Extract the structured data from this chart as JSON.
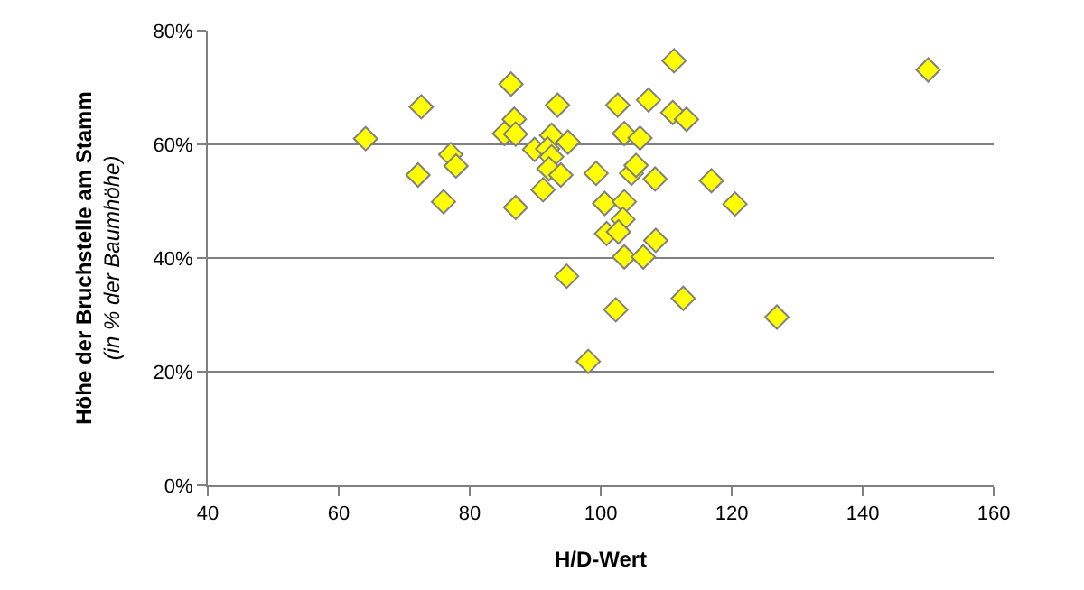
{
  "chart_data": {
    "type": "scatter",
    "xlabel": "H/D-Wert",
    "ylabel": "Höhe der Bruchstelle am Stamm",
    "subtitle": "(in % der Baumhöhe)",
    "x": [
      64.1,
      72.6,
      86.3,
      111.2,
      93.4,
      102.6,
      107.3,
      111.0,
      113.1,
      86.8,
      85.3,
      87.0,
      92.5,
      95.0,
      103.6,
      106.0,
      89.9,
      91.9,
      92.5,
      92.1,
      93.9,
      99.3,
      104.7,
      105.4,
      108.3,
      116.9,
      77.1,
      77.9,
      72.1,
      91.2,
      76.0,
      87.0,
      100.6,
      103.6,
      103.4,
      100.9,
      102.7,
      108.4,
      120.5,
      103.6,
      106.5,
      94.8,
      112.6,
      102.3,
      98.1,
      150.0,
      126.9
    ],
    "values": [
      61.0,
      66.6,
      70.6,
      74.7,
      66.9,
      66.9,
      67.8,
      65.6,
      64.4,
      64.4,
      61.9,
      61.8,
      61.6,
      60.4,
      61.9,
      61.1,
      59.1,
      59.2,
      57.8,
      55.7,
      54.6,
      54.9,
      54.9,
      56.3,
      53.9,
      53.6,
      58.2,
      56.2,
      54.6,
      52.0,
      49.9,
      48.9,
      49.6,
      49.9,
      46.8,
      44.3,
      44.6,
      43.1,
      49.5,
      40.2,
      40.2,
      36.8,
      32.9,
      30.9,
      21.8,
      73.1,
      29.6
    ],
    "color": "#ffff00",
    "marker": "diamond",
    "xlim": [
      40,
      160
    ],
    "xticks": [
      40,
      60,
      80,
      100,
      120,
      140,
      160
    ],
    "ylim": [
      0,
      80
    ],
    "yticks": [
      {
        "value": 0,
        "label": "0%"
      },
      {
        "value": 20,
        "label": "20%"
      },
      {
        "value": 40,
        "label": "40%"
      },
      {
        "value": 60,
        "label": "60%"
      },
      {
        "value": 80,
        "label": "80%"
      }
    ],
    "grid": "y",
    "legend": false
  }
}
